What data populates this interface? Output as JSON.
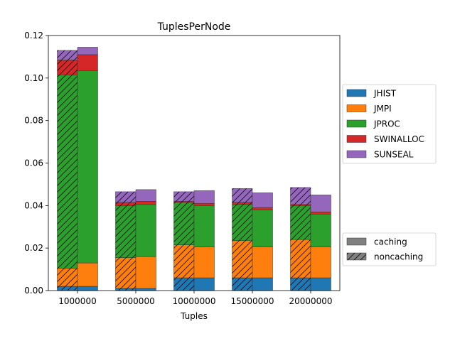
{
  "chart_data": {
    "type": "bar",
    "title": "TuplesPerNode",
    "xlabel": "Tuples",
    "ylabel": "",
    "categories": [
      "1000000",
      "5000000",
      "10000000",
      "15000000",
      "20000000"
    ],
    "ylim": [
      0,
      0.12
    ],
    "yticks": [
      "0.00",
      "0.02",
      "0.04",
      "0.06",
      "0.08",
      "0.10",
      "0.12"
    ],
    "stacked": true,
    "grid": false,
    "legend_placement": "right",
    "series": [
      {
        "name": "JHIST",
        "color": "#1f77b4",
        "noncaching": [
          0.002,
          0.001,
          0.006,
          0.006,
          0.006
        ],
        "caching": [
          0.002,
          0.001,
          0.006,
          0.006,
          0.006
        ]
      },
      {
        "name": "JMPI",
        "color": "#ff7f0e",
        "noncaching": [
          0.0085,
          0.0145,
          0.0155,
          0.0175,
          0.018
        ],
        "caching": [
          0.011,
          0.015,
          0.0145,
          0.0145,
          0.0145
        ]
      },
      {
        "name": "JPROC",
        "color": "#2ca02c",
        "noncaching": [
          0.091,
          0.0245,
          0.02,
          0.017,
          0.016
        ],
        "caching": [
          0.0905,
          0.0245,
          0.0195,
          0.0175,
          0.0155
        ]
      },
      {
        "name": "SWINALLOC",
        "color": "#d62728",
        "noncaching": [
          0.007,
          0.0015,
          0.0005,
          0.001,
          0.0005
        ],
        "caching": [
          0.0075,
          0.0015,
          0.001,
          0.001,
          0.001
        ]
      },
      {
        "name": "SUNSEAL",
        "color": "#9467bd",
        "noncaching": [
          0.0045,
          0.005,
          0.0045,
          0.0065,
          0.008
        ],
        "caching": [
          0.0035,
          0.0055,
          0.006,
          0.007,
          0.008
        ]
      }
    ],
    "hatch_legend": [
      "caching",
      "noncaching"
    ]
  }
}
